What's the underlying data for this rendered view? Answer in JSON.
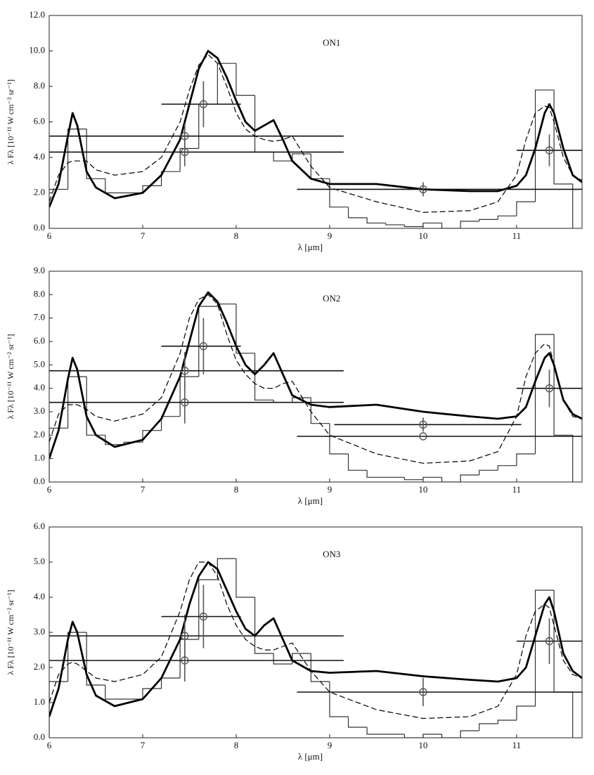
{
  "chart_data": [
    {
      "type": "line",
      "title": "ON1",
      "x_label": "λ [μm]",
      "y_label": "λ Fλ [10⁻¹¹ W cm⁻² sr⁻¹]",
      "xlim": [
        6,
        11.7
      ],
      "ylim": [
        0,
        12
      ],
      "xticks": [
        6,
        7,
        8,
        9,
        10,
        11
      ],
      "yticks": [
        {
          "value": 0,
          "label": "0.0"
        },
        {
          "value": 2,
          "label": "2.0"
        },
        {
          "value": 4,
          "label": "4.0"
        },
        {
          "value": 6,
          "label": "6.0"
        },
        {
          "value": 8,
          "label": "8.0"
        },
        {
          "value": 10,
          "label": "10.0"
        },
        {
          "value": 12,
          "label": "12.0"
        }
      ],
      "x": [
        6.0,
        6.1,
        6.2,
        6.25,
        6.3,
        6.4,
        6.5,
        6.7,
        7.0,
        7.2,
        7.4,
        7.5,
        7.6,
        7.7,
        7.8,
        7.9,
        8.0,
        8.1,
        8.2,
        8.3,
        8.4,
        8.5,
        8.6,
        8.8,
        9.0,
        9.5,
        10.0,
        10.5,
        10.8,
        11.0,
        11.1,
        11.2,
        11.3,
        11.35,
        11.4,
        11.5,
        11.6,
        11.7
      ],
      "series": [
        {
          "color": "#000000",
          "style": "solid",
          "values": [
            1.2,
            2.5,
            5.2,
            6.5,
            5.8,
            3.2,
            2.3,
            1.7,
            2.0,
            3.0,
            5.0,
            7.0,
            9.0,
            10.0,
            9.6,
            8.5,
            7.2,
            6.0,
            5.5,
            5.8,
            6.1,
            5.0,
            3.8,
            2.8,
            2.5,
            2.5,
            2.2,
            2.1,
            2.1,
            2.4,
            3.0,
            4.5,
            6.5,
            7.0,
            6.5,
            4.5,
            3.0,
            2.6
          ]
        },
        {
          "color": "#000000",
          "style": "dashed",
          "values": [
            1.5,
            3.0,
            3.7,
            3.8,
            3.8,
            3.8,
            3.3,
            3.0,
            3.2,
            4.0,
            6.0,
            7.8,
            9.2,
            9.8,
            9.3,
            8.0,
            6.5,
            5.6,
            5.2,
            5.0,
            4.9,
            5.0,
            5.2,
            3.5,
            2.3,
            1.5,
            0.9,
            1.0,
            1.5,
            3.0,
            5.0,
            6.5,
            6.9,
            6.8,
            6.0,
            4.0,
            3.0,
            2.7
          ]
        }
      ],
      "histogram": {
        "color": "#333333",
        "bins": [
          6.0,
          6.2,
          6.4,
          6.6,
          6.8,
          7.0,
          7.2,
          7.4,
          7.6,
          7.8,
          8.0,
          8.2,
          8.4,
          8.6,
          8.8,
          9.0,
          9.2,
          9.4,
          9.6,
          9.8,
          10.0,
          10.2,
          10.4,
          10.6,
          10.8,
          11.0,
          11.2,
          11.4,
          11.6
        ],
        "counts": [
          2.2,
          5.6,
          2.8,
          2.0,
          2.0,
          2.4,
          3.2,
          4.5,
          7.0,
          9.3,
          7.5,
          4.3,
          3.8,
          4.2,
          2.8,
          1.2,
          0.6,
          0.3,
          0.2,
          0.1,
          0.3,
          0.0,
          0.4,
          0.5,
          0.7,
          1.5,
          7.8,
          2.5
        ]
      },
      "points": {
        "color": "#555555",
        "x": [
          7.45,
          7.45,
          7.65,
          10.0,
          11.35
        ],
        "y": [
          5.2,
          4.3,
          7.0,
          2.2,
          4.4
        ],
        "x_low": [
          6.0,
          6.0,
          7.2,
          8.65,
          11.0
        ],
        "x_high": [
          9.15,
          9.15,
          8.05,
          11.7,
          11.7
        ],
        "yerr": [
          0.7,
          0.8,
          1.3,
          0.4,
          0.9
        ]
      }
    },
    {
      "type": "line",
      "title": "ON2",
      "x_label": "λ [μm]",
      "y_label": "λ Fλ [10⁻¹¹ W cm⁻² sr⁻¹]",
      "xlim": [
        6,
        11.7
      ],
      "ylim": [
        0,
        9
      ],
      "xticks": [
        6,
        7,
        8,
        9,
        10,
        11
      ],
      "yticks": [
        {
          "value": 0,
          "label": "0.0"
        },
        {
          "value": 1,
          "label": "1.0"
        },
        {
          "value": 2,
          "label": "2.0"
        },
        {
          "value": 3,
          "label": "3.0"
        },
        {
          "value": 4,
          "label": "4.0"
        },
        {
          "value": 5,
          "label": "5.0"
        },
        {
          "value": 6,
          "label": "6.0"
        },
        {
          "value": 7,
          "label": "7.0"
        },
        {
          "value": 8,
          "label": "8.0"
        },
        {
          "value": 9,
          "label": "9.0"
        }
      ],
      "x": [
        6.0,
        6.1,
        6.2,
        6.25,
        6.3,
        6.4,
        6.5,
        6.7,
        7.0,
        7.2,
        7.4,
        7.5,
        7.6,
        7.7,
        7.8,
        7.9,
        8.0,
        8.1,
        8.2,
        8.3,
        8.4,
        8.5,
        8.6,
        8.8,
        9.0,
        9.5,
        10.0,
        10.5,
        10.8,
        11.0,
        11.1,
        11.2,
        11.3,
        11.35,
        11.4,
        11.5,
        11.6,
        11.7
      ],
      "series": [
        {
          "color": "#000000",
          "style": "solid",
          "values": [
            1.0,
            2.2,
            4.4,
            5.3,
            4.8,
            2.8,
            2.0,
            1.5,
            1.8,
            2.7,
            4.5,
            6.0,
            7.5,
            8.1,
            7.7,
            6.8,
            5.8,
            5.0,
            4.6,
            5.0,
            5.5,
            4.6,
            3.7,
            3.3,
            3.2,
            3.3,
            3.0,
            2.8,
            2.7,
            2.8,
            3.2,
            4.3,
            5.3,
            5.5,
            5.0,
            3.5,
            2.9,
            2.7
          ]
        },
        {
          "color": "#000000",
          "style": "dashed",
          "values": [
            1.7,
            2.9,
            3.3,
            3.3,
            3.3,
            3.1,
            2.8,
            2.6,
            2.9,
            3.6,
            5.5,
            7.0,
            7.8,
            8.0,
            7.6,
            6.3,
            5.2,
            4.6,
            4.2,
            4.0,
            4.0,
            4.2,
            4.3,
            3.0,
            2.0,
            1.2,
            0.8,
            0.9,
            1.3,
            2.8,
            4.5,
            5.5,
            5.9,
            5.8,
            5.0,
            3.5,
            2.8,
            2.7
          ]
        }
      ],
      "histogram": {
        "color": "#333333",
        "bins": [
          6.0,
          6.2,
          6.4,
          6.6,
          6.8,
          7.0,
          7.2,
          7.4,
          7.6,
          7.8,
          8.0,
          8.2,
          8.4,
          8.6,
          8.8,
          9.0,
          9.2,
          9.4,
          9.6,
          9.8,
          10.0,
          10.2,
          10.4,
          10.6,
          10.8,
          11.0,
          11.2,
          11.4,
          11.6
        ],
        "counts": [
          2.3,
          4.5,
          2.0,
          1.6,
          1.7,
          2.2,
          2.8,
          4.5,
          7.5,
          7.6,
          5.5,
          3.5,
          3.4,
          3.6,
          2.5,
          1.2,
          0.5,
          0.2,
          0.2,
          0.1,
          0.2,
          0.0,
          0.3,
          0.5,
          0.7,
          1.2,
          6.3,
          2.0
        ]
      },
      "points": {
        "color": "#555555",
        "x": [
          7.45,
          7.45,
          7.65,
          10.0,
          10.0,
          11.35
        ],
        "y": [
          4.75,
          3.4,
          5.8,
          2.45,
          1.95,
          4.0
        ],
        "x_low": [
          6.0,
          6.0,
          7.2,
          9.05,
          8.65,
          11.0
        ],
        "x_high": [
          9.15,
          9.15,
          8.05,
          11.05,
          11.7,
          11.7
        ],
        "yerr": [
          0.8,
          0.9,
          1.2,
          0.3,
          0,
          0.8
        ]
      }
    },
    {
      "type": "line",
      "title": "ON3",
      "x_label": "λ [μm]",
      "y_label": "λ Fλ [10⁻¹¹ W cm⁻² sr⁻¹]",
      "xlim": [
        6,
        11.7
      ],
      "ylim": [
        0,
        6
      ],
      "xticks": [
        6,
        7,
        8,
        9,
        10,
        11
      ],
      "yticks": [
        {
          "value": 0,
          "label": "0.0"
        },
        {
          "value": 1,
          "label": "1.0"
        },
        {
          "value": 2,
          "label": "2.0"
        },
        {
          "value": 3,
          "label": "3.0"
        },
        {
          "value": 4,
          "label": "4.0"
        },
        {
          "value": 5,
          "label": "5.0"
        },
        {
          "value": 6,
          "label": "6.0"
        }
      ],
      "x": [
        6.0,
        6.1,
        6.2,
        6.25,
        6.3,
        6.4,
        6.5,
        6.7,
        7.0,
        7.2,
        7.4,
        7.5,
        7.6,
        7.7,
        7.8,
        7.9,
        8.0,
        8.1,
        8.2,
        8.3,
        8.4,
        8.5,
        8.6,
        8.8,
        9.0,
        9.5,
        10.0,
        10.5,
        10.8,
        11.0,
        11.1,
        11.2,
        11.3,
        11.35,
        11.4,
        11.5,
        11.6,
        11.7
      ],
      "series": [
        {
          "color": "#000000",
          "style": "solid",
          "values": [
            0.6,
            1.4,
            2.8,
            3.3,
            3.0,
            1.8,
            1.2,
            0.9,
            1.1,
            1.7,
            2.8,
            3.8,
            4.6,
            5.0,
            4.8,
            4.2,
            3.6,
            3.1,
            2.9,
            3.2,
            3.4,
            2.8,
            2.2,
            1.9,
            1.85,
            1.9,
            1.75,
            1.65,
            1.6,
            1.7,
            2.0,
            2.9,
            3.8,
            4.0,
            3.6,
            2.4,
            1.9,
            1.7
          ]
        },
        {
          "color": "#000000",
          "style": "dashed",
          "values": [
            1.0,
            1.8,
            2.1,
            2.15,
            2.1,
            1.9,
            1.7,
            1.6,
            1.8,
            2.3,
            3.6,
            4.5,
            5.0,
            5.0,
            4.6,
            3.8,
            3.2,
            2.8,
            2.6,
            2.5,
            2.5,
            2.6,
            2.7,
            1.9,
            1.3,
            0.8,
            0.55,
            0.6,
            0.9,
            1.8,
            2.9,
            3.6,
            3.8,
            3.7,
            3.2,
            2.2,
            1.8,
            1.7
          ]
        }
      ],
      "histogram": {
        "color": "#333333",
        "bins": [
          6.0,
          6.2,
          6.4,
          6.6,
          6.8,
          7.0,
          7.2,
          7.4,
          7.6,
          7.8,
          8.0,
          8.2,
          8.4,
          8.6,
          8.8,
          9.0,
          9.2,
          9.4,
          9.6,
          9.8,
          10.0,
          10.2,
          10.4,
          10.6,
          10.8,
          11.0,
          11.2,
          11.4,
          11.6
        ],
        "counts": [
          1.6,
          3.0,
          1.5,
          1.1,
          1.1,
          1.4,
          1.7,
          2.8,
          4.5,
          5.1,
          4.0,
          2.4,
          2.1,
          2.4,
          1.6,
          0.6,
          0.3,
          0.1,
          0.1,
          0.0,
          0.1,
          0.0,
          0.2,
          0.4,
          0.5,
          0.9,
          4.2,
          1.3
        ]
      },
      "points": {
        "color": "#555555",
        "x": [
          7.45,
          7.45,
          7.65,
          10.0,
          11.35
        ],
        "y": [
          2.9,
          2.2,
          3.45,
          1.3,
          2.75
        ],
        "x_low": [
          6.0,
          6.0,
          7.2,
          8.65,
          11.0
        ],
        "x_high": [
          9.15,
          9.15,
          8.05,
          11.7,
          11.7
        ],
        "yerr": [
          0.6,
          0.6,
          0.9,
          0.4,
          0.65
        ]
      }
    }
  ]
}
